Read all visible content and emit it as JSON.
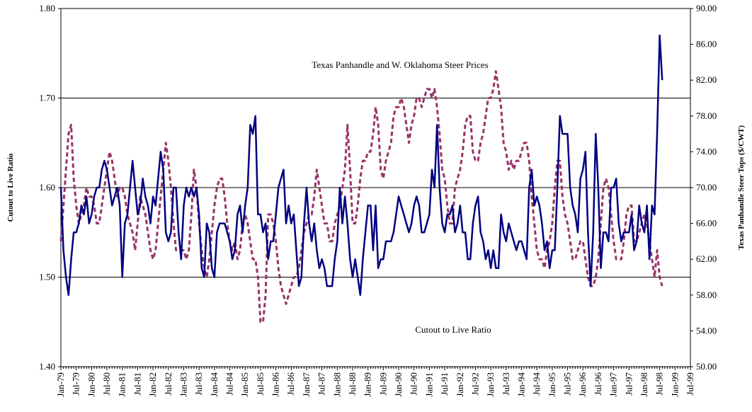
{
  "chart_data": {
    "type": "line",
    "annotations": [
      "Texas Panhandle and W. Oklahoma Steer Prices",
      "Cutout to Live Ratio"
    ],
    "ylabel": "Cutout to Live Ratio",
    "y2label": "Texas Panhandle Steer Tops ($/CWT)",
    "categories": [
      "Jan-79",
      null,
      null,
      null,
      null,
      null,
      "Jul-79",
      null,
      null,
      null,
      null,
      null,
      "Jan-80",
      null,
      null,
      null,
      null,
      null,
      "Jul-80",
      null,
      null,
      null,
      null,
      null,
      "Jan-81",
      null,
      null,
      null,
      null,
      null,
      "Jul-81",
      null,
      null,
      null,
      null,
      null,
      "Jan-82",
      null,
      null,
      null,
      null,
      null,
      "Jul-82",
      null,
      null,
      null,
      null,
      null,
      "Jan-83",
      null,
      null,
      null,
      null,
      null,
      "Jul-83",
      null,
      null,
      null,
      null,
      null,
      "Jan-84",
      null,
      null,
      null,
      null,
      null,
      "Jul-84",
      null,
      null,
      null,
      null,
      null,
      "Jan-85",
      null,
      null,
      null,
      null,
      null,
      "Jul-85",
      null,
      null,
      null,
      null,
      null,
      "Jan-86",
      null,
      null,
      null,
      null,
      null,
      "Jul-86",
      null,
      null,
      null,
      null,
      null,
      "Jan-87",
      null,
      null,
      null,
      null,
      null,
      "Jul-87",
      null,
      null,
      null,
      null,
      null,
      "Jan-88",
      null,
      null,
      null,
      null,
      null,
      "Jul-88",
      null,
      null,
      null,
      null,
      null,
      "Jan-89",
      null,
      null,
      null,
      null,
      null,
      "Jul-89",
      null,
      null,
      null,
      null,
      null,
      "Jan-90",
      null,
      null,
      null,
      null,
      null,
      "Jul-90",
      null,
      null,
      null,
      null,
      null,
      "Jan-91",
      null,
      null,
      null,
      null,
      null,
      "Jul-91",
      null,
      null,
      null,
      null,
      null,
      "Jan-92",
      null,
      null,
      null,
      null,
      null,
      "Jul-92",
      null,
      null,
      null,
      null,
      null,
      "Jan-93",
      null,
      null,
      null,
      null,
      null,
      "Jul-93",
      null,
      null,
      null,
      null,
      null,
      "Jan-94",
      null,
      null,
      null,
      null,
      null,
      "Jul-94",
      null,
      null,
      null,
      null,
      null,
      "Jan-95",
      null,
      null,
      null,
      null,
      null,
      "Jul-95",
      null,
      null,
      null,
      null,
      null,
      "Jan-96",
      null,
      null,
      null,
      null,
      null,
      "Jul-96",
      null,
      null,
      null,
      null,
      null,
      "Jan-97",
      null,
      null,
      null,
      null,
      null,
      "Jul-97",
      null,
      null,
      null,
      null,
      null,
      "Jan-98",
      null,
      null,
      null,
      null,
      null,
      "Jul-98",
      null,
      null,
      null,
      null,
      null,
      "Jan-99",
      null,
      null,
      null,
      null,
      null,
      "Jul-99"
    ],
    "series": [
      {
        "name": "Cutout to Live Ratio",
        "color": "#000080",
        "dashed": false,
        "values": [
          1.6,
          1.53,
          1.5,
          1.48,
          1.52,
          1.55,
          1.55,
          1.56,
          1.58,
          1.57,
          1.59,
          1.56,
          1.57,
          1.59,
          1.6,
          1.6,
          1.62,
          1.63,
          1.62,
          1.6,
          1.58,
          1.59,
          1.6,
          1.58,
          1.5,
          1.56,
          1.57,
          1.6,
          1.63,
          1.6,
          1.57,
          1.58,
          1.61,
          1.59,
          1.58,
          1.56,
          1.59,
          1.58,
          1.61,
          1.64,
          1.62,
          1.55,
          1.54,
          1.55,
          1.6,
          1.6,
          1.55,
          1.52,
          1.58,
          1.6,
          1.59,
          1.6,
          1.59,
          1.6,
          1.57,
          1.51,
          1.5,
          1.56,
          1.55,
          1.51,
          1.5,
          1.55,
          1.56,
          1.56,
          1.56,
          1.55,
          1.54,
          1.52,
          1.53,
          1.57,
          1.58,
          1.55,
          1.58,
          1.6,
          1.67,
          1.66,
          1.68,
          1.57,
          1.57,
          1.55,
          1.56,
          1.52,
          1.54,
          1.54,
          1.57,
          1.6,
          1.61,
          1.62,
          1.56,
          1.58,
          1.56,
          1.57,
          1.53,
          1.49,
          1.5,
          1.56,
          1.6,
          1.56,
          1.54,
          1.56,
          1.53,
          1.51,
          1.52,
          1.51,
          1.49,
          1.49,
          1.49,
          1.52,
          1.54,
          1.6,
          1.56,
          1.59,
          1.56,
          1.52,
          1.5,
          1.52,
          1.5,
          1.48,
          1.52,
          1.55,
          1.58,
          1.58,
          1.53,
          1.58,
          1.51,
          1.52,
          1.52,
          1.54,
          1.54,
          1.54,
          1.55,
          1.57,
          1.59,
          1.58,
          1.57,
          1.56,
          1.55,
          1.56,
          1.58,
          1.59,
          1.58,
          1.55,
          1.55,
          1.56,
          1.57,
          1.62,
          1.6,
          1.67,
          1.6,
          1.56,
          1.55,
          1.57,
          1.57,
          1.58,
          1.55,
          1.56,
          1.58,
          1.55,
          1.55,
          1.52,
          1.52,
          1.56,
          1.58,
          1.59,
          1.55,
          1.54,
          1.52,
          1.53,
          1.51,
          1.53,
          1.51,
          1.51,
          1.57,
          1.55,
          1.54,
          1.56,
          1.55,
          1.54,
          1.53,
          1.54,
          1.54,
          1.53,
          1.52,
          1.6,
          1.62,
          1.58,
          1.59,
          1.58,
          1.56,
          1.53,
          1.54,
          1.51,
          1.53,
          1.53,
          1.6,
          1.68,
          1.66,
          1.66,
          1.66,
          1.6,
          1.58,
          1.57,
          1.55,
          1.61,
          1.62,
          1.64,
          1.55,
          1.49,
          1.55,
          1.66,
          1.6,
          1.51,
          1.55,
          1.55,
          1.54,
          1.6,
          1.6,
          1.61,
          1.56,
          1.54,
          1.55,
          1.55,
          1.55,
          1.57,
          1.53,
          1.54,
          1.58,
          1.56,
          1.55,
          1.58,
          1.52,
          1.58,
          1.57,
          1.66,
          1.77,
          1.72,
          null,
          null,
          null,
          null,
          null,
          null,
          null,
          null,
          null,
          null,
          null
        ]
      },
      {
        "name": "Texas Panhandle and W. Oklahoma Steer Prices",
        "color": "#993366",
        "dashed": true,
        "axis": "y2",
        "values": [
          64,
          68,
          72,
          76,
          77,
          71,
          68,
          66,
          67,
          68,
          70,
          69,
          69,
          68,
          66,
          66,
          68,
          70,
          72,
          74,
          73,
          71,
          69,
          70,
          70,
          69,
          67,
          66,
          65,
          63,
          66,
          69,
          68,
          67,
          65,
          63,
          62,
          63,
          66,
          69,
          72,
          75,
          73,
          70,
          66,
          63,
          63,
          63,
          63,
          62,
          63,
          67,
          72,
          70,
          66,
          63,
          61,
          60,
          62,
          65,
          68,
          70,
          71,
          71,
          69,
          66,
          64,
          63,
          64,
          62,
          63,
          66,
          67,
          66,
          64,
          62,
          62,
          60,
          55,
          55,
          58,
          67,
          67,
          66,
          64,
          61,
          59,
          58,
          57,
          58,
          59,
          60,
          60,
          61,
          63,
          65,
          66,
          67,
          67,
          69,
          72,
          70,
          68,
          66,
          66,
          64,
          64,
          66,
          67,
          68,
          70,
          72,
          77,
          72,
          66,
          66,
          68,
          71,
          73,
          73,
          74,
          74,
          76,
          79,
          77,
          72,
          71,
          73,
          74,
          75,
          78,
          79,
          79,
          80,
          79,
          77,
          75,
          77,
          78,
          80,
          80,
          79,
          80,
          81,
          81,
          80,
          81,
          79,
          76,
          72,
          71,
          68,
          66,
          66,
          70,
          71,
          72,
          74,
          77,
          78,
          78,
          74,
          73,
          73,
          75,
          76,
          78,
          80,
          80,
          81,
          83,
          81,
          79,
          75,
          74,
          72,
          73,
          72,
          73,
          73,
          74,
          75,
          75,
          73,
          69,
          66,
          63,
          62,
          62,
          61,
          63,
          64,
          66,
          70,
          73,
          73,
          69,
          67,
          66,
          64,
          62,
          62,
          63,
          64,
          64,
          62,
          60,
          59,
          59,
          60,
          62,
          66,
          70,
          71,
          70,
          67,
          64,
          62,
          62,
          62,
          64,
          67,
          68,
          68,
          64,
          64,
          65,
          66,
          67,
          66,
          64,
          62,
          60,
          63,
          60,
          59,
          null,
          null,
          null,
          null,
          null,
          null,
          null,
          null,
          null,
          null,
          null
        ]
      }
    ],
    "ylim": [
      1.4,
      1.8
    ],
    "yticks": [
      {
        "value": 1.4,
        "label": "1.40"
      },
      {
        "value": 1.5,
        "label": "1.50"
      },
      {
        "value": 1.6,
        "label": "1.60"
      },
      {
        "value": 1.7,
        "label": "1.70"
      },
      {
        "value": 1.8,
        "label": "1.80"
      }
    ],
    "y2lim": [
      50,
      90
    ],
    "y2ticks": [
      {
        "value": 50,
        "label": "50.00"
      },
      {
        "value": 54,
        "label": "54.00"
      },
      {
        "value": 58,
        "label": "58.00"
      },
      {
        "value": 62,
        "label": "62.00"
      },
      {
        "value": 66,
        "label": "66.00"
      },
      {
        "value": 70,
        "label": "70.00"
      },
      {
        "value": 74,
        "label": "74.00"
      },
      {
        "value": 78,
        "label": "78.00"
      },
      {
        "value": 82,
        "label": "82.00"
      },
      {
        "value": 86,
        "label": "86.00"
      },
      {
        "value": 90,
        "label": "90.00"
      }
    ],
    "grid": true
  }
}
